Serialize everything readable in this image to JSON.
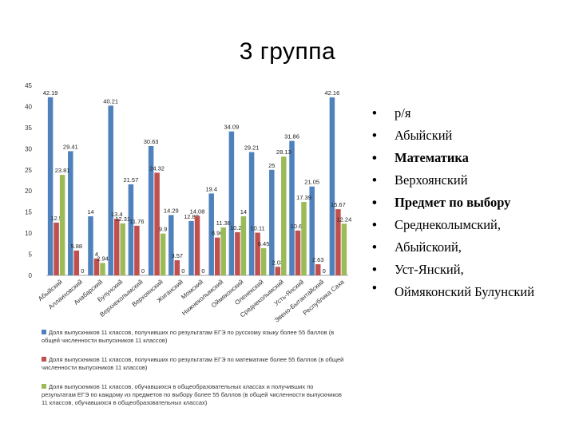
{
  "title": "3 группа",
  "chart_data": {
    "type": "bar",
    "categories": [
      "Абыйский",
      "Аллаиховский",
      "Анабарский",
      "Булунский",
      "Верхнеколымский",
      "Верхоянский",
      "Жиганский",
      "Момский",
      "Нижнеколымский",
      "Оймяконский",
      "Оленекский",
      "Среднеколымский",
      "Усть-Янский",
      "Эвено-Бытантайский",
      "Республика Саха"
    ],
    "ylim": [
      0,
      45
    ],
    "yticks": [
      0,
      5,
      10,
      15,
      20,
      25,
      30,
      35,
      40,
      45
    ],
    "grid": false,
    "legend_position": "bottom",
    "series": [
      {
        "name": "Доля выпускников 11 классов, получивших по результатам ЕГЭ по русскому языку более 55 баллов (в общей численности выпускников 11 классов)",
        "color": "#4f81bd",
        "values": [
          42.19,
          29.41,
          14,
          40.21,
          21.57,
          30.63,
          14.29,
          12.88,
          19.4,
          34.09,
          29.21,
          25,
          31.86,
          21.05,
          42.16
        ]
      },
      {
        "name": "Доля выпускников 11 классов, получивших по результатам ЕГЭ по математике более 55 баллов (в общей численности выпускников 11 классов)",
        "color": "#c0504d",
        "values": [
          12.5,
          5.88,
          4,
          13.4,
          11.76,
          24.32,
          3.57,
          14.08,
          8.96,
          10.23,
          10.11,
          2.03,
          10.62,
          2.63,
          15.67
        ]
      },
      {
        "name": "Доля выпускников 11 классов, обучавшихся в общеобразовательных классах и получивших по результатам ЕГЭ по каждому из предметов по выбору более 55 баллов (в общей численности выпускников 11 классов, обучавшихся в общеобразовательных классах)",
        "color": "#9bbb59",
        "values": [
          23.81,
          0,
          2.94,
          12.31,
          0,
          9.9,
          0,
          0,
          11.36,
          14,
          6.45,
          28.13,
          17.39,
          0,
          12.24
        ]
      }
    ]
  },
  "notes": [
    "р/я",
    "Абыйский",
    "Математика",
    "Верхоянский",
    "Предмет по выбору",
    "Среднеколымский,",
    "Абыйскоий,",
    "Уст-Янский,",
    "Оймяконский Булунский"
  ]
}
